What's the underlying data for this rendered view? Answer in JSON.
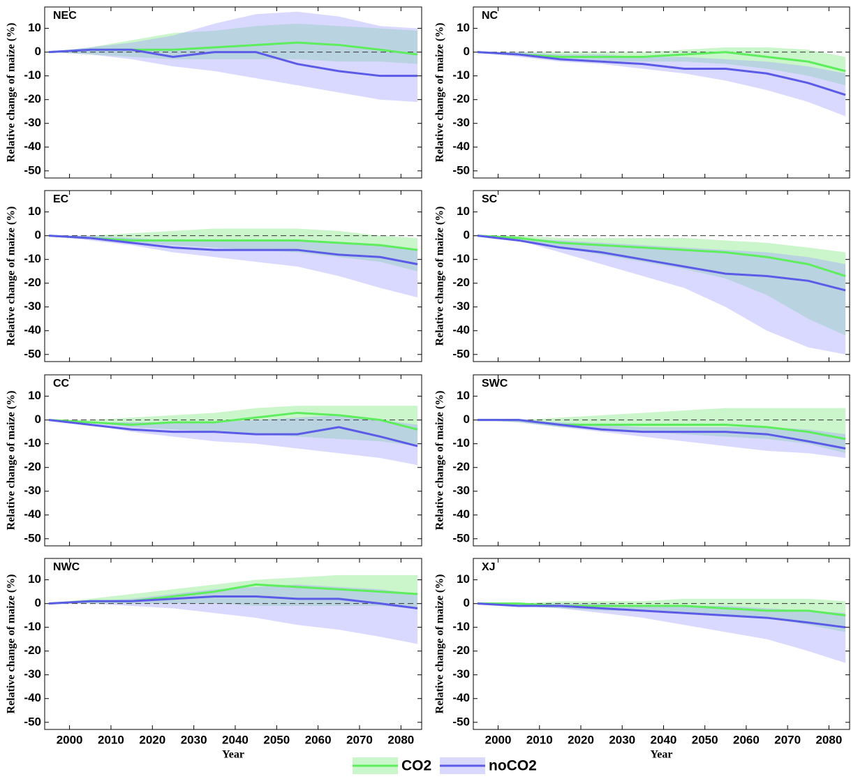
{
  "chart_data": [
    {
      "type": "band-line",
      "title": "NEC",
      "ylabel": "Relative change of maize (%)",
      "xlim": [
        1994,
        2085
      ],
      "ylim": [
        -53,
        19
      ],
      "xticks": [
        2000,
        2010,
        2020,
        2030,
        2040,
        2050,
        2060,
        2070,
        2080
      ],
      "yticks": [
        -50,
        -40,
        -30,
        -20,
        -10,
        0,
        10
      ],
      "reference_line": 0,
      "x": [
        1995,
        2005,
        2015,
        2025,
        2035,
        2045,
        2055,
        2065,
        2075,
        2084
      ],
      "series": [
        {
          "name": "CO2",
          "color": "#5ded5d",
          "band_color": "#7ee67e",
          "values": [
            0,
            1,
            1,
            1,
            2,
            3,
            4,
            3,
            1,
            -1
          ],
          "lower": [
            0,
            -1,
            -2,
            -3,
            -3,
            -3,
            -3,
            -4,
            -4,
            -5
          ],
          "upper": [
            0,
            2,
            5,
            8,
            9,
            11,
            12,
            11,
            10,
            9
          ]
        },
        {
          "name": "noCO2",
          "color": "#5b5be8",
          "band_color": "#a0a0ff",
          "values": [
            0,
            1,
            1,
            -2,
            0,
            0,
            -5,
            -8,
            -10,
            -10
          ],
          "lower": [
            0,
            -1,
            -3,
            -6,
            -8,
            -11,
            -14,
            -17,
            -20,
            -21
          ],
          "upper": [
            0,
            2,
            4,
            7,
            12,
            16,
            17,
            15,
            11,
            10
          ]
        }
      ]
    },
    {
      "type": "band-line",
      "title": "NC",
      "ylabel": "Relative change of maize (%)",
      "xlim": [
        1994,
        2085
      ],
      "ylim": [
        -53,
        19
      ],
      "xticks": [
        2000,
        2010,
        2020,
        2030,
        2040,
        2050,
        2060,
        2070,
        2080
      ],
      "yticks": [
        -50,
        -40,
        -30,
        -20,
        -10,
        0,
        10
      ],
      "reference_line": 0,
      "x": [
        1995,
        2005,
        2015,
        2025,
        2035,
        2045,
        2055,
        2065,
        2075,
        2084
      ],
      "series": [
        {
          "name": "CO2",
          "color": "#5ded5d",
          "band_color": "#7ee67e",
          "values": [
            0,
            -1,
            -2,
            -2,
            -2,
            -1,
            0,
            -2,
            -4,
            -8
          ],
          "lower": [
            0,
            -1,
            -3,
            -4,
            -4,
            -4,
            -5,
            -7,
            -10,
            -14
          ],
          "upper": [
            0,
            0,
            0,
            0,
            0,
            1,
            2,
            2,
            1,
            -2
          ]
        },
        {
          "name": "noCO2",
          "color": "#5b5be8",
          "band_color": "#a0a0ff",
          "values": [
            0,
            -1,
            -3,
            -4,
            -5,
            -7,
            -7,
            -9,
            -13,
            -18
          ],
          "lower": [
            0,
            -2,
            -4,
            -5,
            -7,
            -9,
            -12,
            -16,
            -21,
            -27
          ],
          "upper": [
            0,
            0,
            -1,
            -1,
            -2,
            -2,
            -3,
            -4,
            -6,
            -9
          ]
        }
      ]
    },
    {
      "type": "band-line",
      "title": "EC",
      "ylabel": "Relative change of maize (%)",
      "xlim": [
        1994,
        2085
      ],
      "ylim": [
        -53,
        19
      ],
      "xticks": [
        2000,
        2010,
        2020,
        2030,
        2040,
        2050,
        2060,
        2070,
        2080
      ],
      "yticks": [
        -50,
        -40,
        -30,
        -20,
        -10,
        0,
        10
      ],
      "reference_line": 0,
      "x": [
        1995,
        2005,
        2015,
        2025,
        2035,
        2045,
        2055,
        2065,
        2075,
        2084
      ],
      "series": [
        {
          "name": "CO2",
          "color": "#5ded5d",
          "band_color": "#7ee67e",
          "values": [
            0,
            -1,
            -2,
            -2,
            -2,
            -2,
            -2,
            -3,
            -4,
            -6
          ],
          "lower": [
            0,
            -1,
            -3,
            -4,
            -5,
            -6,
            -7,
            -9,
            -11,
            -15
          ],
          "upper": [
            0,
            0,
            1,
            2,
            3,
            3,
            3,
            2,
            0,
            -1
          ]
        },
        {
          "name": "noCO2",
          "color": "#5b5be8",
          "band_color": "#a0a0ff",
          "values": [
            0,
            -1,
            -3,
            -5,
            -6,
            -6,
            -6,
            -8,
            -9,
            -12
          ],
          "lower": [
            0,
            -2,
            -4,
            -7,
            -9,
            -11,
            -13,
            -17,
            -22,
            -26
          ],
          "upper": [
            0,
            0,
            -1,
            -2,
            -2,
            -2,
            -2,
            -3,
            -4,
            -6
          ]
        }
      ]
    },
    {
      "type": "band-line",
      "title": "SC",
      "ylabel": "Relative change of maize (%)",
      "xlim": [
        1994,
        2085
      ],
      "ylim": [
        -53,
        19
      ],
      "xticks": [
        2000,
        2010,
        2020,
        2030,
        2040,
        2050,
        2060,
        2070,
        2080
      ],
      "yticks": [
        -50,
        -40,
        -30,
        -20,
        -10,
        0,
        10
      ],
      "reference_line": 0,
      "x": [
        1995,
        2005,
        2015,
        2025,
        2035,
        2045,
        2055,
        2065,
        2075,
        2084
      ],
      "series": [
        {
          "name": "CO2",
          "color": "#5ded5d",
          "band_color": "#7ee67e",
          "values": [
            0,
            -1,
            -3,
            -4,
            -5,
            -6,
            -7,
            -9,
            -12,
            -17
          ],
          "lower": [
            0,
            -2,
            -5,
            -8,
            -11,
            -14,
            -18,
            -25,
            -35,
            -42
          ],
          "upper": [
            0,
            0,
            -1,
            -1,
            -1,
            -1,
            -2,
            -3,
            -5,
            -7
          ]
        },
        {
          "name": "noCO2",
          "color": "#5b5be8",
          "band_color": "#a0a0ff",
          "values": [
            0,
            -2,
            -5,
            -7,
            -10,
            -13,
            -16,
            -17,
            -19,
            -23
          ],
          "lower": [
            0,
            -2,
            -7,
            -12,
            -17,
            -22,
            -30,
            -40,
            -47,
            -50
          ],
          "upper": [
            0,
            -1,
            -2,
            -3,
            -4,
            -5,
            -6,
            -7,
            -9,
            -12
          ]
        }
      ]
    },
    {
      "type": "band-line",
      "title": "CC",
      "ylabel": "Relative change of maize (%)",
      "xlim": [
        1994,
        2085
      ],
      "ylim": [
        -53,
        19
      ],
      "xticks": [
        2000,
        2010,
        2020,
        2030,
        2040,
        2050,
        2060,
        2070,
        2080
      ],
      "yticks": [
        -50,
        -40,
        -30,
        -20,
        -10,
        0,
        10
      ],
      "reference_line": 0,
      "x": [
        1995,
        2005,
        2015,
        2025,
        2035,
        2045,
        2055,
        2065,
        2075,
        2084
      ],
      "series": [
        {
          "name": "CO2",
          "color": "#5ded5d",
          "band_color": "#7ee67e",
          "values": [
            0,
            -1,
            -2,
            -1,
            -1,
            1,
            3,
            2,
            0,
            -4
          ],
          "lower": [
            0,
            -1,
            -3,
            -4,
            -5,
            -6,
            -7,
            -8,
            -9,
            -11
          ],
          "upper": [
            0,
            0,
            1,
            2,
            3,
            5,
            6,
            6,
            6,
            6
          ]
        },
        {
          "name": "noCO2",
          "color": "#5b5be8",
          "band_color": "#a0a0ff",
          "values": [
            0,
            -2,
            -4,
            -5,
            -5,
            -6,
            -6,
            -3,
            -7,
            -11
          ],
          "lower": [
            0,
            -2,
            -5,
            -7,
            -9,
            -10,
            -12,
            -14,
            -16,
            -19
          ],
          "upper": [
            0,
            -1,
            -1,
            -1,
            -1,
            0,
            1,
            2,
            0,
            -2
          ]
        }
      ]
    },
    {
      "type": "band-line",
      "title": "SWC",
      "ylabel": "Relative change of maize (%)",
      "xlim": [
        1994,
        2085
      ],
      "ylim": [
        -53,
        19
      ],
      "xticks": [
        2000,
        2010,
        2020,
        2030,
        2040,
        2050,
        2060,
        2070,
        2080
      ],
      "yticks": [
        -50,
        -40,
        -30,
        -20,
        -10,
        0,
        10
      ],
      "reference_line": 0,
      "x": [
        1995,
        2005,
        2015,
        2025,
        2035,
        2045,
        2055,
        2065,
        2075,
        2084
      ],
      "series": [
        {
          "name": "CO2",
          "color": "#5ded5d",
          "band_color": "#7ee67e",
          "values": [
            0,
            0,
            -2,
            -2,
            -2,
            -2,
            -2,
            -3,
            -5,
            -8
          ],
          "lower": [
            0,
            -1,
            -3,
            -4,
            -5,
            -6,
            -7,
            -8,
            -10,
            -14
          ],
          "upper": [
            0,
            0,
            1,
            2,
            3,
            4,
            5,
            5,
            5,
            5
          ]
        },
        {
          "name": "noCO2",
          "color": "#5b5be8",
          "band_color": "#a0a0ff",
          "values": [
            0,
            0,
            -2,
            -4,
            -5,
            -5,
            -5,
            -6,
            -9,
            -12
          ],
          "lower": [
            0,
            -1,
            -3,
            -5,
            -7,
            -9,
            -11,
            -13,
            -14,
            -16
          ],
          "upper": [
            0,
            0,
            -1,
            -2,
            -3,
            -3,
            -3,
            -3,
            -4,
            -6
          ]
        }
      ]
    },
    {
      "type": "band-line",
      "title": "NWC",
      "ylabel": "Relative change of maize (%)",
      "xlabel": "Year",
      "xlim": [
        1994,
        2085
      ],
      "ylim": [
        -53,
        19
      ],
      "xticks": [
        2000,
        2010,
        2020,
        2030,
        2040,
        2050,
        2060,
        2070,
        2080
      ],
      "yticks": [
        -50,
        -40,
        -30,
        -20,
        -10,
        0,
        10
      ],
      "reference_line": 0,
      "x": [
        1995,
        2005,
        2015,
        2025,
        2035,
        2045,
        2055,
        2065,
        2075,
        2084
      ],
      "series": [
        {
          "name": "CO2",
          "color": "#5ded5d",
          "band_color": "#7ee67e",
          "values": [
            0,
            1,
            1,
            3,
            5,
            8,
            7,
            6,
            5,
            4
          ],
          "lower": [
            0,
            0,
            0,
            0,
            0,
            -1,
            -1,
            -1,
            -1,
            -2
          ],
          "upper": [
            0,
            2,
            4,
            6,
            8,
            10,
            11,
            12,
            12,
            12
          ]
        },
        {
          "name": "noCO2",
          "color": "#5b5be8",
          "band_color": "#a0a0ff",
          "values": [
            0,
            1,
            1,
            2,
            3,
            3,
            2,
            2,
            0,
            -2
          ],
          "lower": [
            0,
            0,
            -1,
            -2,
            -4,
            -6,
            -9,
            -11,
            -14,
            -17
          ],
          "upper": [
            0,
            1,
            2,
            4,
            6,
            7,
            8,
            7,
            6,
            4
          ]
        }
      ]
    },
    {
      "type": "band-line",
      "title": "XJ",
      "ylabel": "Relative change of maize (%)",
      "xlabel": "Year",
      "xlim": [
        1994,
        2085
      ],
      "ylim": [
        -53,
        19
      ],
      "xticks": [
        2000,
        2010,
        2020,
        2030,
        2040,
        2050,
        2060,
        2070,
        2080
      ],
      "yticks": [
        -50,
        -40,
        -30,
        -20,
        -10,
        0,
        10
      ],
      "reference_line": 0,
      "x": [
        1995,
        2005,
        2015,
        2025,
        2035,
        2045,
        2055,
        2065,
        2075,
        2084
      ],
      "series": [
        {
          "name": "CO2",
          "color": "#5ded5d",
          "band_color": "#7ee67e",
          "values": [
            0,
            0,
            -1,
            -1,
            -1,
            -1,
            -2,
            -3,
            -3,
            -5
          ],
          "lower": [
            0,
            -1,
            -2,
            -3,
            -3,
            -4,
            -5,
            -6,
            -9,
            -12
          ],
          "upper": [
            0,
            0,
            1,
            1,
            1,
            2,
            2,
            2,
            2,
            1
          ]
        },
        {
          "name": "noCO2",
          "color": "#5b5be8",
          "band_color": "#a0a0ff",
          "values": [
            0,
            -1,
            -1,
            -2,
            -3,
            -4,
            -5,
            -6,
            -8,
            -10
          ],
          "lower": [
            0,
            -1,
            -2,
            -4,
            -6,
            -9,
            -12,
            -15,
            -20,
            -25
          ],
          "upper": [
            0,
            0,
            0,
            0,
            -1,
            -1,
            -1,
            -2,
            -3,
            -4
          ]
        }
      ]
    }
  ]
}
